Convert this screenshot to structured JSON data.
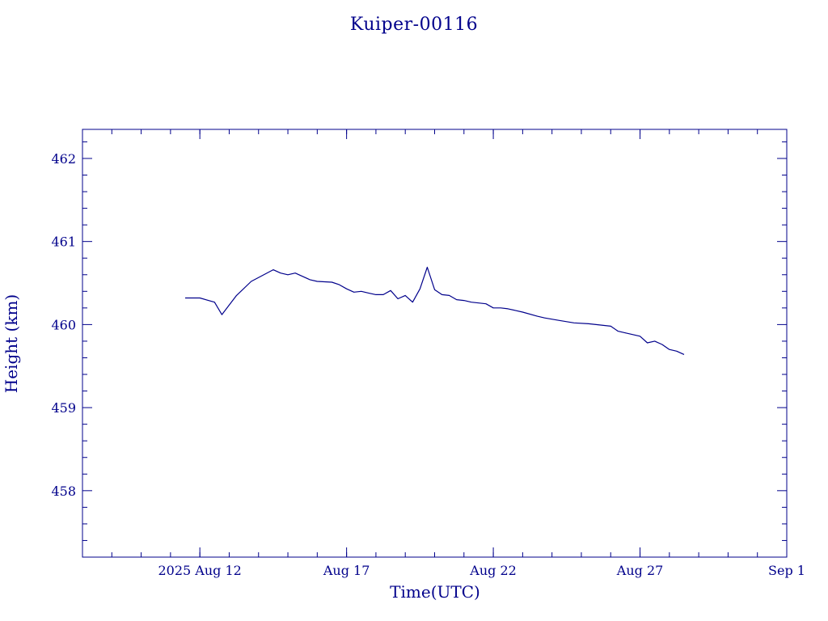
{
  "chart_data": {
    "type": "line",
    "title": "Kuiper-00116",
    "xlabel": "Time(UTC)",
    "ylabel": "Height (km)",
    "ylim": [
      457.2,
      462.35
    ],
    "xlim": [
      "2025-08-08T00:00",
      "2025-09-01T00:00"
    ],
    "x_ticks": [
      {
        "x": "2025-08-12",
        "label": "2025 Aug 12"
      },
      {
        "x": "2025-08-17",
        "label": "Aug 17"
      },
      {
        "x": "2025-08-22",
        "label": "Aug 22"
      },
      {
        "x": "2025-08-27",
        "label": "Aug 27"
      },
      {
        "x": "2025-09-01",
        "label": "Sep  1"
      }
    ],
    "y_ticks": [
      458,
      459,
      460,
      461,
      462
    ],
    "series": [
      {
        "color": "#00008b",
        "x": [
          "2025-08-11T12:00",
          "2025-08-12T00:00",
          "2025-08-12T12:00",
          "2025-08-12T18:00",
          "2025-08-13T06:00",
          "2025-08-13T18:00",
          "2025-08-14T12:00",
          "2025-08-14T18:00",
          "2025-08-15T00:00",
          "2025-08-15T06:00",
          "2025-08-15T12:00",
          "2025-08-15T18:00",
          "2025-08-16T00:00",
          "2025-08-16T12:00",
          "2025-08-16T18:00",
          "2025-08-17T00:00",
          "2025-08-17T06:00",
          "2025-08-17T12:00",
          "2025-08-17T18:00",
          "2025-08-18T00:00",
          "2025-08-18T06:00",
          "2025-08-18T12:00",
          "2025-08-18T18:00",
          "2025-08-19T00:00",
          "2025-08-19T06:00",
          "2025-08-19T12:00",
          "2025-08-19T18:00",
          "2025-08-20T00:00",
          "2025-08-20T06:00",
          "2025-08-20T12:00",
          "2025-08-20T18:00",
          "2025-08-21T00:00",
          "2025-08-21T06:00",
          "2025-08-21T18:00",
          "2025-08-22T00:00",
          "2025-08-22T06:00",
          "2025-08-22T12:00",
          "2025-08-22T18:00",
          "2025-08-23T00:00",
          "2025-08-23T12:00",
          "2025-08-23T18:00",
          "2025-08-24T06:00",
          "2025-08-24T18:00",
          "2025-08-25T06:00",
          "2025-08-25T12:00",
          "2025-08-26T00:00",
          "2025-08-26T06:00",
          "2025-08-26T12:00",
          "2025-08-27T00:00",
          "2025-08-27T06:00",
          "2025-08-27T12:00",
          "2025-08-27T18:00",
          "2025-08-28T00:00",
          "2025-08-28T06:00",
          "2025-08-28T12:00"
        ],
        "y": [
          460.32,
          460.32,
          460.27,
          460.12,
          460.35,
          460.52,
          460.66,
          460.62,
          460.6,
          460.62,
          460.58,
          460.54,
          460.52,
          460.51,
          460.48,
          460.43,
          460.39,
          460.4,
          460.38,
          460.36,
          460.36,
          460.41,
          460.31,
          460.35,
          460.27,
          460.43,
          460.69,
          460.42,
          460.36,
          460.35,
          460.3,
          460.29,
          460.27,
          460.25,
          460.2,
          460.2,
          460.19,
          460.17,
          460.15,
          460.1,
          460.08,
          460.05,
          460.02,
          460.01,
          460.0,
          459.98,
          459.92,
          459.9,
          459.86,
          459.78,
          459.8,
          459.76,
          459.7,
          459.68,
          459.64
        ]
      }
    ],
    "grid": false,
    "legend": "none"
  }
}
